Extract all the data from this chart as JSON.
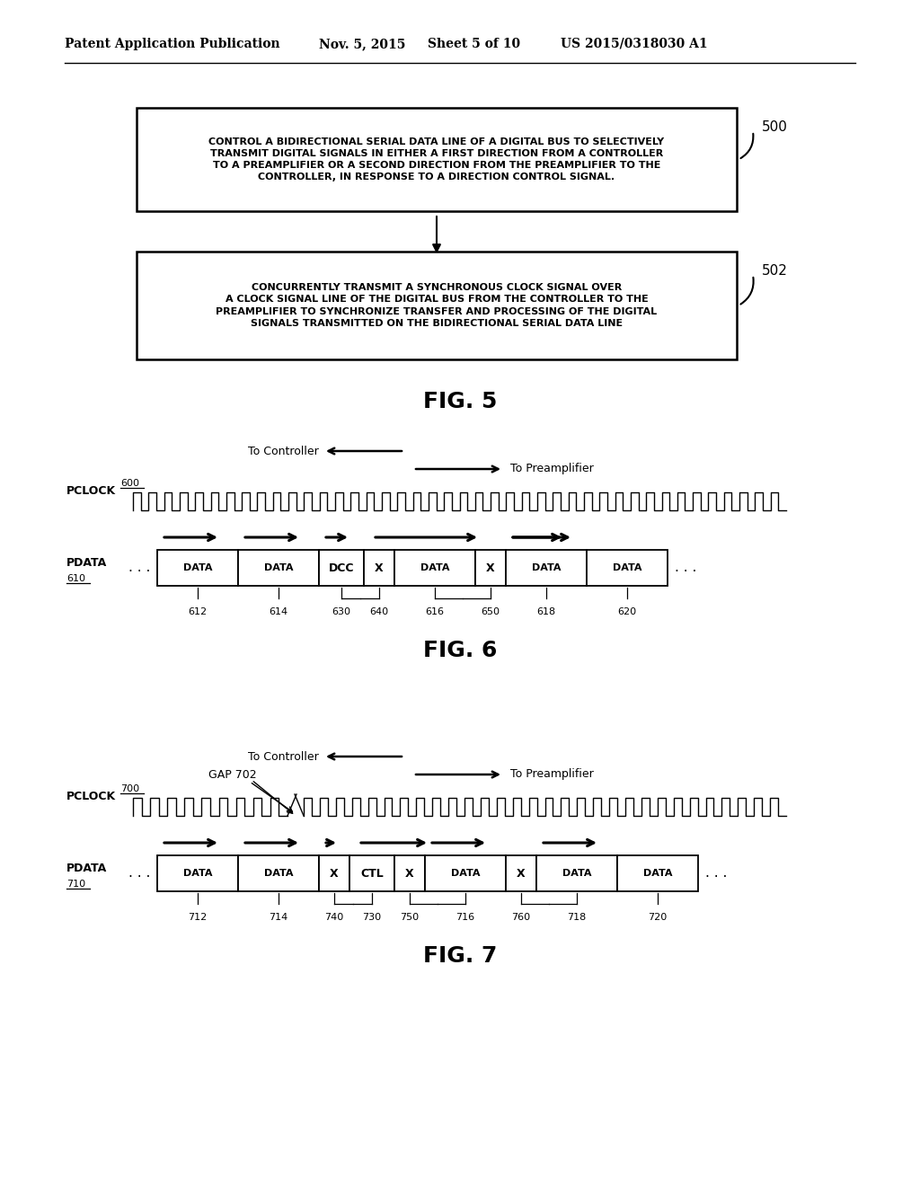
{
  "bg_color": "#ffffff",
  "header_text": "Patent Application Publication",
  "header_date": "Nov. 5, 2015",
  "header_sheet": "Sheet 5 of 10",
  "header_patent": "US 2015/0318030 A1",
  "fig5_box1_text": "CONTROL A BIDIRECTIONAL SERIAL DATA LINE OF A DIGITAL BUS TO SELECTIVELY\nTRANSMIT DIGITAL SIGNALS IN EITHER A FIRST DIRECTION FROM A CONTROLLER\nTO A PREAMPLIFIER OR A SECOND DIRECTION FROM THE PREAMPLIFIER TO THE\nCONTROLLER, IN RESPONSE TO A DIRECTION CONTROL SIGNAL.",
  "fig5_box1_label": "500",
  "fig5_box2_text": "CONCURRENTLY TRANSMIT A SYNCHRONOUS CLOCK SIGNAL OVER\nA CLOCK SIGNAL LINE OF THE DIGITAL BUS FROM THE CONTROLLER TO THE\nPREAMPLIFIER TO SYNCHRONIZE TRANSFER AND PROCESSING OF THE DIGITAL\nSIGNALS TRANSMITTED ON THE BIDIRECTIONAL SERIAL DATA LINE",
  "fig5_box2_label": "502",
  "fig5_caption": "FIG. 5",
  "fig6_caption": "FIG. 6",
  "fig7_caption": "FIG. 7",
  "fig6_pclock_label": "PCLOCK",
  "fig6_pclock_num": "600",
  "fig6_pdata_label": "PDATA",
  "fig6_pdata_num": "610",
  "fig6_to_controller": "To Controller",
  "fig6_to_preamplifier": "To Preamplifier",
  "fig6_cells": [
    "DATA",
    "DATA",
    "DCC",
    "X",
    "DATA",
    "X",
    "DATA",
    "DATA"
  ],
  "fig6_labels": [
    "612",
    "614",
    "630",
    "640",
    "616",
    "650",
    "618",
    "620"
  ],
  "fig7_pclock_label": "PCLOCK",
  "fig7_pclock_num": "700",
  "fig7_pdata_label": "PDATA",
  "fig7_pdata_num": "710",
  "fig7_to_controller": "To Controller",
  "fig7_to_preamplifier": "To Preamplifier",
  "fig7_gap_label": "GAP 702",
  "fig7_cells": [
    "DATA",
    "DATA",
    "X",
    "CTL",
    "X",
    "DATA",
    "X",
    "DATA",
    "DATA"
  ],
  "fig7_labels": [
    "712",
    "714",
    "740",
    "730",
    "750",
    "716",
    "760",
    "718",
    "720"
  ]
}
